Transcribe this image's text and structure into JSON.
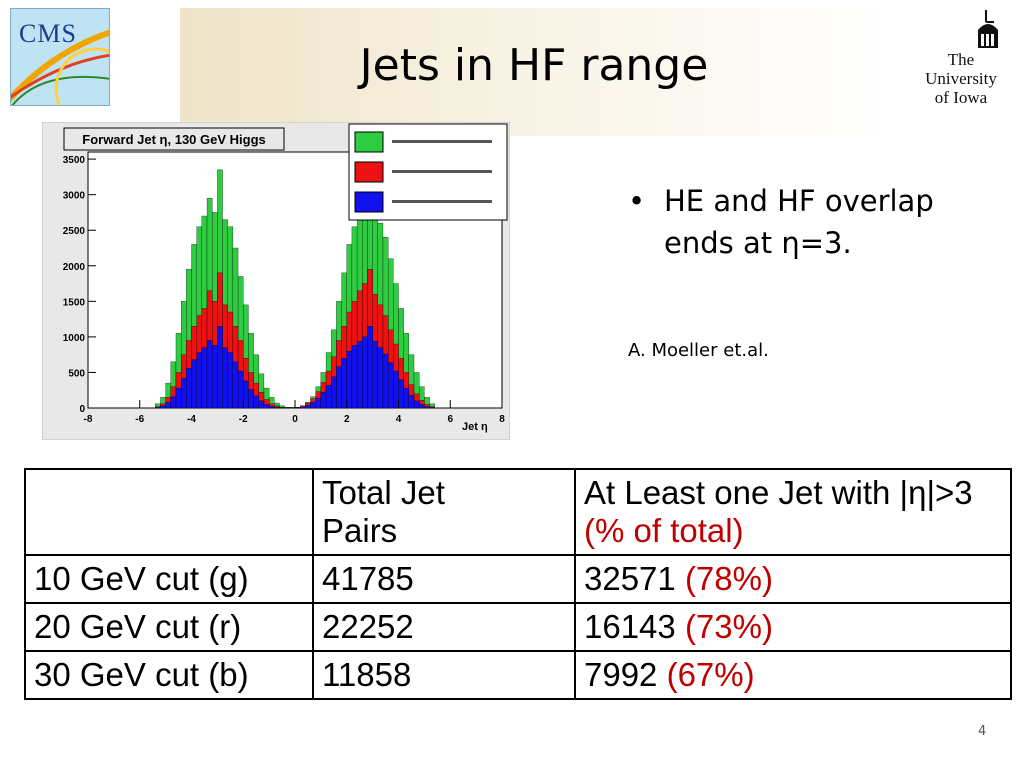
{
  "slide": {
    "title": "Jets in HF range",
    "logo_left": "CMS",
    "logo_right": [
      "The",
      "University",
      "of Iowa"
    ],
    "bullets": [
      "HE and HF overlap ends at η=3."
    ],
    "credit": "A. Moeller et.al.",
    "page_number": "4"
  },
  "chart_data": {
    "type": "bar",
    "title": "Forward Jet η, 130 GeV Higgs",
    "xlabel": "Jet η",
    "ylabel": "",
    "xlim": [
      -8,
      8
    ],
    "ylim": [
      0,
      3600
    ],
    "x_ticks": [
      "-8",
      "-6",
      "-4",
      "-2",
      "0",
      "2",
      "4",
      "6",
      "8"
    ],
    "y_ticks": [
      "0",
      "500",
      "1000",
      "1500",
      "2000",
      "2500",
      "3000",
      "3500"
    ],
    "legend_position": "top-right",
    "bin_width": 0.2,
    "x": [
      -5.3,
      -5.1,
      -4.9,
      -4.7,
      -4.5,
      -4.3,
      -4.1,
      -3.9,
      -3.7,
      -3.5,
      -3.3,
      -3.1,
      -2.9,
      -2.7,
      -2.5,
      -2.3,
      -2.1,
      -1.9,
      -1.7,
      -1.5,
      -1.3,
      -1.1,
      -0.9,
      -0.7,
      -0.5,
      -0.3,
      -0.1,
      0.1,
      0.3,
      0.5,
      0.7,
      0.9,
      1.1,
      1.3,
      1.5,
      1.7,
      1.9,
      2.1,
      2.3,
      2.5,
      2.7,
      2.9,
      3.1,
      3.3,
      3.5,
      3.7,
      3.9,
      4.1,
      4.3,
      4.5,
      4.7,
      4.9,
      5.1,
      5.3
    ],
    "series": [
      {
        "name": "",
        "color": "#2ecc40",
        "values": [
          60,
          150,
          350,
          650,
          1050,
          1500,
          1950,
          2300,
          2550,
          2700,
          2950,
          2750,
          3350,
          2650,
          2550,
          2250,
          1850,
          1450,
          1050,
          750,
          480,
          280,
          150,
          70,
          30,
          10,
          10,
          10,
          30,
          80,
          160,
          300,
          500,
          780,
          1100,
          1500,
          1900,
          2300,
          2550,
          2750,
          2900,
          3300,
          2700,
          2600,
          2400,
          2100,
          1750,
          1400,
          1050,
          750,
          500,
          300,
          150,
          60
        ]
      },
      {
        "name": "",
        "color": "#ee1111",
        "values": [
          20,
          60,
          150,
          300,
          500,
          750,
          950,
          1150,
          1300,
          1400,
          1650,
          1500,
          1900,
          1450,
          1350,
          1150,
          950,
          700,
          500,
          350,
          220,
          120,
          60,
          30,
          10,
          5,
          5,
          10,
          30,
          70,
          130,
          230,
          360,
          520,
          720,
          950,
          1150,
          1350,
          1500,
          1650,
          1750,
          1950,
          1600,
          1450,
          1300,
          1100,
          900,
          700,
          500,
          330,
          200,
          110,
          50,
          20
        ]
      },
      {
        "name": "",
        "color": "#1111ee",
        "values": [
          10,
          30,
          80,
          160,
          280,
          420,
          560,
          680,
          780,
          850,
          950,
          880,
          1150,
          850,
          780,
          650,
          520,
          380,
          260,
          170,
          100,
          50,
          25,
          10,
          5,
          3,
          3,
          5,
          15,
          40,
          80,
          140,
          220,
          320,
          440,
          580,
          700,
          800,
          880,
          940,
          1000,
          1150,
          940,
          850,
          760,
          640,
          520,
          400,
          280,
          180,
          100,
          50,
          20,
          8
        ]
      }
    ]
  }
}
